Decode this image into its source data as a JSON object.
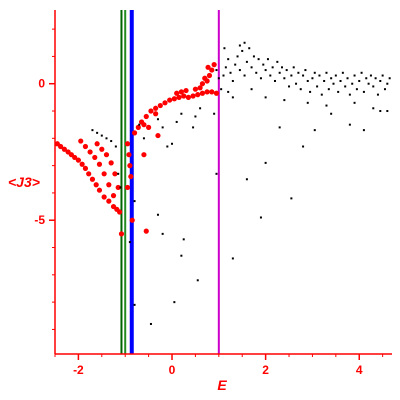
{
  "chart_data": {
    "type": "scatter",
    "title": "",
    "xlabel": "E",
    "ylabel": "<J3>",
    "xlim": [
      -2.5,
      4.7
    ],
    "ylim": [
      -9.9,
      2.7
    ],
    "x_ticks": [
      {
        "value": -2,
        "label": "-2"
      },
      {
        "value": 0,
        "label": "0"
      },
      {
        "value": 2,
        "label": "2"
      },
      {
        "value": 4,
        "label": "4"
      }
    ],
    "y_ticks": [
      {
        "value": 0,
        "label": "0"
      },
      {
        "value": -5,
        "label": "-5"
      }
    ],
    "grid": false,
    "legend": "none",
    "colors": {
      "axis": "#ff0000",
      "red_series": "#ff0000",
      "black_series": "#000000"
    },
    "vertical_lines": [
      {
        "x": -1.08,
        "color": "#006400"
      },
      {
        "x": -1.0,
        "color": "#228b22"
      },
      {
        "x": -0.86,
        "color": "#0000ff"
      },
      {
        "x": 1.0,
        "color": "#cc00cc"
      }
    ],
    "series": [
      {
        "color": "#ff0000",
        "points": [
          [
            -2.45,
            -2.2
          ],
          [
            -2.38,
            -2.3
          ],
          [
            -2.3,
            -2.4
          ],
          [
            -2.22,
            -2.5
          ],
          [
            -2.15,
            -2.6
          ],
          [
            -2.08,
            -2.7
          ],
          [
            -2.0,
            -2.8
          ],
          [
            -1.92,
            -2.95
          ],
          [
            -1.85,
            -3.1
          ],
          [
            -1.78,
            -3.3
          ],
          [
            -1.7,
            -3.5
          ],
          [
            -1.62,
            -3.7
          ],
          [
            -1.55,
            -3.9
          ],
          [
            -1.45,
            -4.15
          ],
          [
            -1.35,
            -4.3
          ],
          [
            -1.25,
            -4.5
          ],
          [
            -1.18,
            -4.6
          ],
          [
            -1.12,
            -4.7
          ],
          [
            -1.08,
            -5.5
          ],
          [
            -1.95,
            -2.1
          ],
          [
            -1.85,
            -2.3
          ],
          [
            -1.75,
            -2.5
          ],
          [
            -1.65,
            -2.7
          ],
          [
            -1.55,
            -2.95
          ],
          [
            -1.45,
            -3.3
          ],
          [
            -1.35,
            -3.7
          ],
          [
            -1.25,
            -4.1
          ],
          [
            -1.6,
            -2.2
          ],
          [
            -1.5,
            -2.4
          ],
          [
            -1.4,
            -2.6
          ],
          [
            -1.3,
            -2.9
          ],
          [
            -1.22,
            -3.3
          ],
          [
            -1.15,
            -3.8
          ],
          [
            -0.95,
            -2.2
          ],
          [
            -0.92,
            -2.6
          ],
          [
            -0.9,
            -3.0
          ],
          [
            -0.88,
            -3.4
          ],
          [
            -0.95,
            -3.8
          ],
          [
            -0.8,
            -1.8
          ],
          [
            -0.72,
            -1.6
          ],
          [
            -0.6,
            -1.5
          ],
          [
            -0.55,
            -1.2
          ],
          [
            -0.45,
            -1.0
          ],
          [
            -0.35,
            -0.9
          ],
          [
            -0.25,
            -0.8
          ],
          [
            -0.15,
            -0.7
          ],
          [
            -0.05,
            -0.6
          ],
          [
            0.05,
            -0.55
          ],
          [
            0.15,
            -0.5
          ],
          [
            0.25,
            -0.45
          ],
          [
            0.35,
            -0.5
          ],
          [
            0.45,
            -0.45
          ],
          [
            0.55,
            -0.4
          ],
          [
            0.65,
            -0.35
          ],
          [
            0.75,
            -0.3
          ],
          [
            0.85,
            -0.3
          ],
          [
            0.95,
            -0.35
          ],
          [
            0.1,
            -0.35
          ],
          [
            0.2,
            -0.3
          ],
          [
            0.3,
            -0.25
          ],
          [
            0.5,
            -0.2
          ],
          [
            0.6,
            -0.15
          ],
          [
            0.75,
            0.1
          ],
          [
            0.8,
            0.3
          ],
          [
            0.85,
            0.5
          ],
          [
            0.7,
            0.2
          ],
          [
            0.65,
            0.0
          ],
          [
            0.9,
            0.7
          ],
          [
            0.77,
            0.6
          ],
          [
            -0.65,
            -1.4
          ],
          [
            -0.5,
            -1.6
          ],
          [
            -0.3,
            -1.9
          ],
          [
            -0.6,
            -2.6
          ],
          [
            -0.55,
            -5.4
          ],
          [
            -0.85,
            -5.0
          ],
          [
            -0.35,
            -1.1
          ]
        ]
      },
      {
        "color": "#000000",
        "points": [
          [
            -1.7,
            -1.7
          ],
          [
            -1.6,
            -1.8
          ],
          [
            -1.5,
            -1.9
          ],
          [
            -1.4,
            -2.0
          ],
          [
            -1.3,
            -2.1
          ],
          [
            -1.2,
            -2.3
          ],
          [
            -1.15,
            -3.3
          ],
          [
            -1.1,
            -3.8
          ],
          [
            -0.7,
            -1.5
          ],
          [
            -0.6,
            -2.0
          ],
          [
            -0.3,
            -1.3
          ],
          [
            -0.2,
            -1.6
          ],
          [
            -0.1,
            -2.3
          ],
          [
            0.0,
            -2.2
          ],
          [
            0.1,
            -1.4
          ],
          [
            0.2,
            -1.1
          ],
          [
            -0.8,
            -4.3
          ],
          [
            -0.3,
            -4.8
          ],
          [
            -0.9,
            -5.8
          ],
          [
            -0.2,
            -5.5
          ],
          [
            0.25,
            -5.7
          ],
          [
            -0.8,
            -8.1
          ],
          [
            -0.45,
            -8.8
          ],
          [
            0.05,
            -8.0
          ],
          [
            0.55,
            -7.2
          ],
          [
            0.2,
            -6.3
          ],
          [
            0.95,
            -3.3
          ],
          [
            1.3,
            -6.4
          ],
          [
            1.6,
            -3.5
          ],
          [
            1.9,
            -4.9
          ],
          [
            2.0,
            -2.9
          ],
          [
            2.3,
            -1.6
          ],
          [
            2.55,
            -4.2
          ],
          [
            2.8,
            -2.3
          ],
          [
            3.05,
            -1.7
          ],
          [
            3.4,
            -1.1
          ],
          [
            3.8,
            -1.5
          ],
          [
            4.1,
            -1.7
          ],
          [
            4.45,
            -1.0
          ],
          [
            0.45,
            -1.6
          ],
          [
            0.5,
            -1.2
          ],
          [
            0.6,
            -0.9
          ],
          [
            0.9,
            -1.1
          ],
          [
            1.2,
            -0.3
          ],
          [
            1.1,
            0.3
          ],
          [
            1.15,
            0.6
          ],
          [
            1.2,
            0.9
          ],
          [
            1.25,
            0.4
          ],
          [
            1.3,
            0.1
          ],
          [
            1.35,
            0.7
          ],
          [
            1.4,
            1.0
          ],
          [
            1.45,
            0.5
          ],
          [
            1.5,
            1.2
          ],
          [
            1.55,
            0.3
          ],
          [
            1.6,
            0.8
          ],
          [
            1.65,
            1.3
          ],
          [
            1.7,
            0.6
          ],
          [
            1.75,
            1.0
          ],
          [
            1.8,
            0.4
          ],
          [
            1.85,
            0.9
          ],
          [
            1.9,
            0.2
          ],
          [
            1.95,
            0.7
          ],
          [
            2.0,
            0.5
          ],
          [
            2.05,
            0.9
          ],
          [
            2.1,
            0.3
          ],
          [
            2.15,
            0.6
          ],
          [
            2.2,
            0.1
          ],
          [
            2.25,
            0.8
          ],
          [
            2.3,
            0.4
          ],
          [
            2.35,
            0.6
          ],
          [
            2.4,
            0.2
          ],
          [
            2.45,
            0.5
          ],
          [
            2.5,
            -0.1
          ],
          [
            2.55,
            0.3
          ],
          [
            2.6,
            0.6
          ],
          [
            2.65,
            0.0
          ],
          [
            2.7,
            0.4
          ],
          [
            2.75,
            -0.2
          ],
          [
            2.8,
            0.3
          ],
          [
            2.85,
            0.5
          ],
          [
            2.9,
            0.1
          ],
          [
            2.95,
            -0.3
          ],
          [
            3.0,
            0.2
          ],
          [
            3.05,
            0.4
          ],
          [
            3.1,
            -0.1
          ],
          [
            3.15,
            0.3
          ],
          [
            3.2,
            -0.4
          ],
          [
            3.25,
            0.1
          ],
          [
            3.3,
            0.4
          ],
          [
            3.35,
            -0.2
          ],
          [
            3.4,
            0.2
          ],
          [
            3.45,
            0.0
          ],
          [
            3.5,
            0.3
          ],
          [
            3.55,
            -0.3
          ],
          [
            3.6,
            0.1
          ],
          [
            3.65,
            0.4
          ],
          [
            3.7,
            -0.1
          ],
          [
            3.75,
            0.2
          ],
          [
            3.8,
            -0.4
          ],
          [
            3.85,
            0.0
          ],
          [
            3.9,
            0.3
          ],
          [
            3.95,
            -0.2
          ],
          [
            4.0,
            0.1
          ],
          [
            4.05,
            0.4
          ],
          [
            4.1,
            -0.3
          ],
          [
            4.15,
            0.2
          ],
          [
            4.2,
            0.0
          ],
          [
            4.25,
            0.3
          ],
          [
            4.3,
            -0.1
          ],
          [
            4.35,
            0.2
          ],
          [
            4.4,
            -0.4
          ],
          [
            4.45,
            0.1
          ],
          [
            4.5,
            0.3
          ],
          [
            4.55,
            -0.2
          ],
          [
            4.6,
            0.0
          ],
          [
            4.65,
            0.2
          ],
          [
            1.0,
            0.2
          ],
          [
            1.05,
            -0.2
          ],
          [
            0.95,
            0.5
          ],
          [
            1.12,
            1.3
          ],
          [
            1.45,
            1.4
          ],
          [
            1.55,
            1.5
          ],
          [
            1.3,
            -0.5
          ],
          [
            1.7,
            -0.2
          ],
          [
            2.0,
            -0.5
          ],
          [
            2.4,
            -0.6
          ],
          [
            2.9,
            -0.7
          ],
          [
            3.3,
            -0.8
          ],
          [
            3.9,
            -0.7
          ],
          [
            4.3,
            -0.9
          ],
          [
            4.6,
            -1.0
          ]
        ]
      }
    ]
  }
}
